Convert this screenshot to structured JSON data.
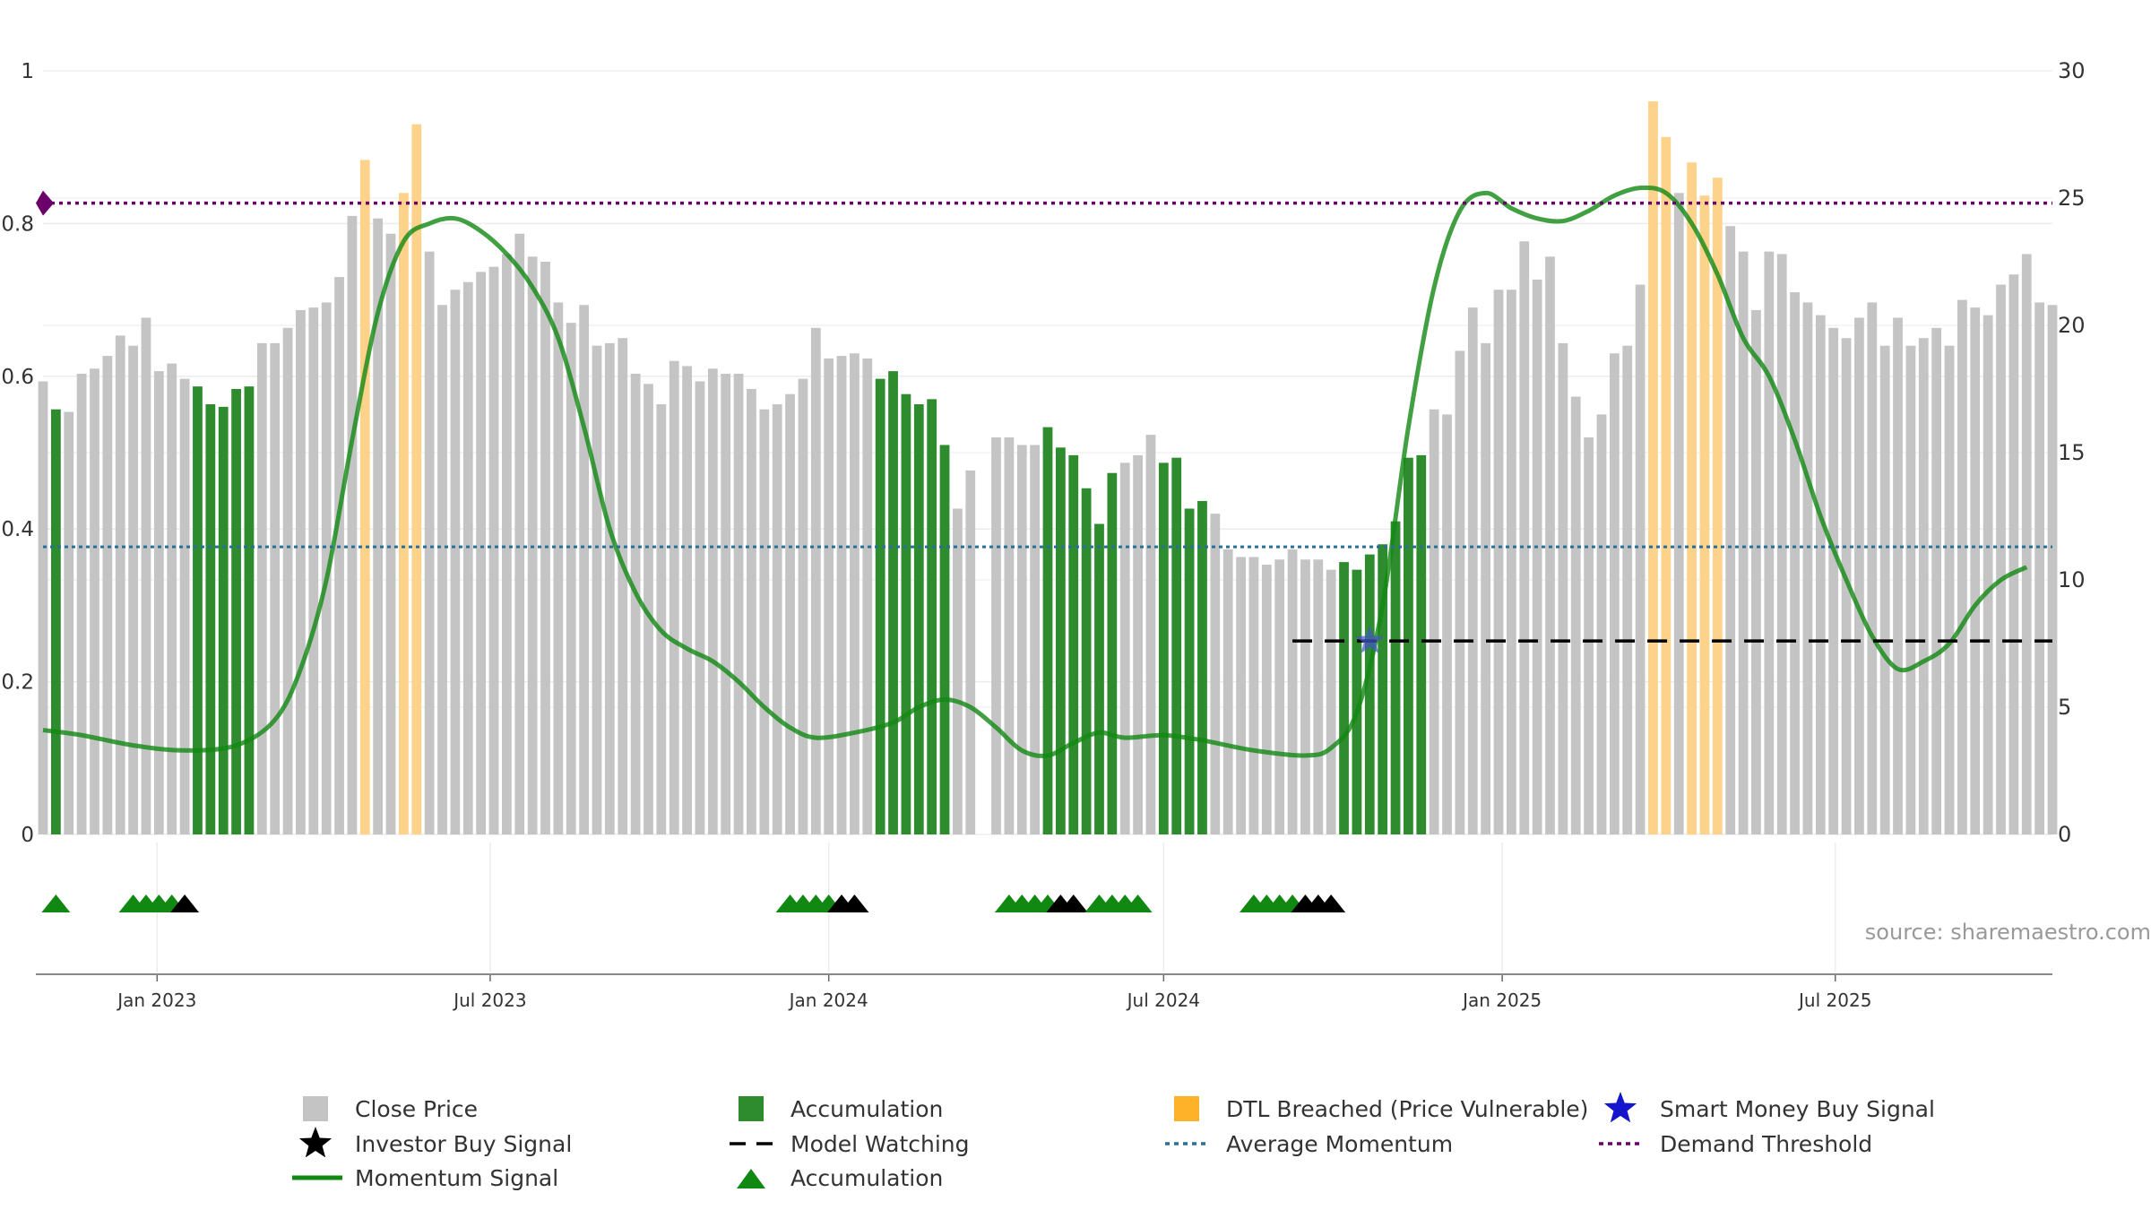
{
  "chart_data": {
    "type": "bar",
    "x_ticks": [
      "Jan 2023",
      "Jul 2023",
      "Jan 2024",
      "Jul 2024",
      "Jan 2025",
      "Jul 2025"
    ],
    "x_tick_dates": [
      "2023-01-01",
      "2023-07-01",
      "2024-01-01",
      "2024-07-01",
      "2025-01-01",
      "2025-07-01"
    ],
    "x_range": [
      "2022-10-31",
      "2025-10-27"
    ],
    "y_left": {
      "ticks": [
        "0",
        "0.2",
        "0.4",
        "0.6",
        "0.8",
        "1"
      ],
      "range": [
        0,
        1
      ]
    },
    "y_right": {
      "ticks": [
        "0",
        "5",
        "10",
        "15",
        "20",
        "25",
        "30"
      ],
      "range": [
        0,
        30
      ]
    },
    "grid": true,
    "legend_position": "bottom",
    "source_text": "source: sharemaestro.com",
    "colors": {
      "close": "#c4c4c4",
      "accumulation": "#2e8b2e",
      "dtl": "#fdd28a",
      "momentum": "#118811",
      "average": "#2a6f97",
      "threshold": "#6b006b",
      "smart_money": "#4455cc",
      "investor_signal": "#000000",
      "accum_marker": "#118811"
    },
    "start_date": "2022-10-31",
    "weekly_close": [
      {
        "v": 17.8,
        "s": "close"
      },
      {
        "v": 16.7,
        "s": "acc"
      },
      {
        "v": 16.6,
        "s": "close"
      },
      {
        "v": 18.1,
        "s": "close"
      },
      {
        "v": 18.3,
        "s": "close"
      },
      {
        "v": 18.8,
        "s": "close"
      },
      {
        "v": 19.6,
        "s": "close"
      },
      {
        "v": 19.2,
        "s": "close"
      },
      {
        "v": 20.3,
        "s": "close"
      },
      {
        "v": 18.2,
        "s": "close"
      },
      {
        "v": 18.5,
        "s": "close"
      },
      {
        "v": 17.9,
        "s": "close"
      },
      {
        "v": 17.6,
        "s": "acc"
      },
      {
        "v": 16.9,
        "s": "acc"
      },
      {
        "v": 16.8,
        "s": "acc"
      },
      {
        "v": 17.5,
        "s": "acc"
      },
      {
        "v": 17.6,
        "s": "acc"
      },
      {
        "v": 19.3,
        "s": "close"
      },
      {
        "v": 19.3,
        "s": "close"
      },
      {
        "v": 19.9,
        "s": "close"
      },
      {
        "v": 20.6,
        "s": "close"
      },
      {
        "v": 20.7,
        "s": "close"
      },
      {
        "v": 20.9,
        "s": "close"
      },
      {
        "v": 21.9,
        "s": "close"
      },
      {
        "v": 24.3,
        "s": "close"
      },
      {
        "v": 26.5,
        "s": "dtl"
      },
      {
        "v": 24.2,
        "s": "close"
      },
      {
        "v": 23.6,
        "s": "close"
      },
      {
        "v": 25.2,
        "s": "dtl"
      },
      {
        "v": 27.9,
        "s": "dtl"
      },
      {
        "v": 22.9,
        "s": "close"
      },
      {
        "v": 20.8,
        "s": "close"
      },
      {
        "v": 21.4,
        "s": "close"
      },
      {
        "v": 21.7,
        "s": "close"
      },
      {
        "v": 22.1,
        "s": "close"
      },
      {
        "v": 22.3,
        "s": "close"
      },
      {
        "v": 22.8,
        "s": "close"
      },
      {
        "v": 23.6,
        "s": "close"
      },
      {
        "v": 22.7,
        "s": "close"
      },
      {
        "v": 22.5,
        "s": "close"
      },
      {
        "v": 20.9,
        "s": "close"
      },
      {
        "v": 20.1,
        "s": "close"
      },
      {
        "v": 20.8,
        "s": "close"
      },
      {
        "v": 19.2,
        "s": "close"
      },
      {
        "v": 19.3,
        "s": "close"
      },
      {
        "v": 19.5,
        "s": "close"
      },
      {
        "v": 18.1,
        "s": "close"
      },
      {
        "v": 17.7,
        "s": "close"
      },
      {
        "v": 16.9,
        "s": "close"
      },
      {
        "v": 18.6,
        "s": "close"
      },
      {
        "v": 18.4,
        "s": "close"
      },
      {
        "v": 17.8,
        "s": "close"
      },
      {
        "v": 18.3,
        "s": "close"
      },
      {
        "v": 18.1,
        "s": "close"
      },
      {
        "v": 18.1,
        "s": "close"
      },
      {
        "v": 17.5,
        "s": "close"
      },
      {
        "v": 16.7,
        "s": "close"
      },
      {
        "v": 16.9,
        "s": "close"
      },
      {
        "v": 17.3,
        "s": "close"
      },
      {
        "v": 17.9,
        "s": "close"
      },
      {
        "v": 19.9,
        "s": "close"
      },
      {
        "v": 18.7,
        "s": "close"
      },
      {
        "v": 18.8,
        "s": "close"
      },
      {
        "v": 18.9,
        "s": "close"
      },
      {
        "v": 18.7,
        "s": "close"
      },
      {
        "v": 17.9,
        "s": "acc"
      },
      {
        "v": 18.2,
        "s": "acc"
      },
      {
        "v": 17.3,
        "s": "acc"
      },
      {
        "v": 16.9,
        "s": "acc"
      },
      {
        "v": 17.1,
        "s": "acc"
      },
      {
        "v": 15.3,
        "s": "acc"
      },
      {
        "v": 12.8,
        "s": "close"
      },
      {
        "v": 14.3,
        "s": "close"
      },
      {
        "v": 0,
        "s": "close"
      },
      {
        "v": 15.6,
        "s": "close"
      },
      {
        "v": 15.6,
        "s": "close"
      },
      {
        "v": 15.3,
        "s": "close"
      },
      {
        "v": 15.3,
        "s": "close"
      },
      {
        "v": 16.0,
        "s": "acc"
      },
      {
        "v": 15.2,
        "s": "acc"
      },
      {
        "v": 14.9,
        "s": "acc"
      },
      {
        "v": 13.6,
        "s": "acc"
      },
      {
        "v": 12.2,
        "s": "acc"
      },
      {
        "v": 14.2,
        "s": "acc"
      },
      {
        "v": 14.6,
        "s": "close"
      },
      {
        "v": 14.9,
        "s": "close"
      },
      {
        "v": 15.7,
        "s": "close"
      },
      {
        "v": 14.6,
        "s": "acc"
      },
      {
        "v": 14.8,
        "s": "acc"
      },
      {
        "v": 12.8,
        "s": "acc"
      },
      {
        "v": 13.1,
        "s": "acc"
      },
      {
        "v": 12.6,
        "s": "close"
      },
      {
        "v": 11.2,
        "s": "close"
      },
      {
        "v": 10.9,
        "s": "close"
      },
      {
        "v": 10.9,
        "s": "close"
      },
      {
        "v": 10.6,
        "s": "close"
      },
      {
        "v": 10.8,
        "s": "close"
      },
      {
        "v": 11.2,
        "s": "close"
      },
      {
        "v": 10.8,
        "s": "close"
      },
      {
        "v": 10.8,
        "s": "close"
      },
      {
        "v": 10.4,
        "s": "close"
      },
      {
        "v": 10.7,
        "s": "acc"
      },
      {
        "v": 10.4,
        "s": "acc"
      },
      {
        "v": 11.0,
        "s": "acc"
      },
      {
        "v": 11.4,
        "s": "acc"
      },
      {
        "v": 12.3,
        "s": "acc"
      },
      {
        "v": 14.8,
        "s": "acc"
      },
      {
        "v": 14.9,
        "s": "acc"
      },
      {
        "v": 16.7,
        "s": "close"
      },
      {
        "v": 16.5,
        "s": "close"
      },
      {
        "v": 19.0,
        "s": "close"
      },
      {
        "v": 20.7,
        "s": "close"
      },
      {
        "v": 19.3,
        "s": "close"
      },
      {
        "v": 21.4,
        "s": "close"
      },
      {
        "v": 21.4,
        "s": "close"
      },
      {
        "v": 23.3,
        "s": "close"
      },
      {
        "v": 21.8,
        "s": "close"
      },
      {
        "v": 22.7,
        "s": "close"
      },
      {
        "v": 19.3,
        "s": "close"
      },
      {
        "v": 17.2,
        "s": "close"
      },
      {
        "v": 15.6,
        "s": "close"
      },
      {
        "v": 16.5,
        "s": "close"
      },
      {
        "v": 18.9,
        "s": "close"
      },
      {
        "v": 19.2,
        "s": "close"
      },
      {
        "v": 21.6,
        "s": "close"
      },
      {
        "v": 28.8,
        "s": "dtl"
      },
      {
        "v": 27.4,
        "s": "dtl"
      },
      {
        "v": 25.2,
        "s": "close"
      },
      {
        "v": 26.4,
        "s": "dtl"
      },
      {
        "v": 25.1,
        "s": "dtl"
      },
      {
        "v": 25.8,
        "s": "dtl"
      },
      {
        "v": 23.9,
        "s": "close"
      },
      {
        "v": 22.9,
        "s": "close"
      },
      {
        "v": 20.6,
        "s": "close"
      },
      {
        "v": 22.9,
        "s": "close"
      },
      {
        "v": 22.8,
        "s": "close"
      },
      {
        "v": 21.3,
        "s": "close"
      },
      {
        "v": 20.9,
        "s": "close"
      },
      {
        "v": 20.4,
        "s": "close"
      },
      {
        "v": 19.9,
        "s": "close"
      },
      {
        "v": 19.5,
        "s": "close"
      },
      {
        "v": 20.3,
        "s": "close"
      },
      {
        "v": 20.9,
        "s": "close"
      },
      {
        "v": 19.2,
        "s": "close"
      },
      {
        "v": 20.3,
        "s": "close"
      },
      {
        "v": 19.2,
        "s": "close"
      },
      {
        "v": 19.5,
        "s": "close"
      },
      {
        "v": 19.9,
        "s": "close"
      },
      {
        "v": 19.2,
        "s": "close"
      },
      {
        "v": 21.0,
        "s": "close"
      },
      {
        "v": 20.7,
        "s": "close"
      },
      {
        "v": 20.4,
        "s": "close"
      },
      {
        "v": 21.6,
        "s": "close"
      },
      {
        "v": 22.0,
        "s": "close"
      },
      {
        "v": 22.8,
        "s": "close"
      },
      {
        "v": 20.9,
        "s": "close"
      },
      {
        "v": 20.8,
        "s": "close"
      }
    ],
    "momentum_signal": [
      [
        "2022-10-31",
        4.1
      ],
      [
        "2022-11-21",
        3.9
      ],
      [
        "2022-12-19",
        3.5
      ],
      [
        "2023-01-16",
        3.3
      ],
      [
        "2023-02-13",
        3.5
      ],
      [
        "2023-03-06",
        4.5
      ],
      [
        "2023-03-20",
        6.5
      ],
      [
        "2023-04-03",
        10.0
      ],
      [
        "2023-04-17",
        15.5
      ],
      [
        "2023-05-01",
        20.5
      ],
      [
        "2023-05-15",
        23.3
      ],
      [
        "2023-05-29",
        24.0
      ],
      [
        "2023-06-12",
        24.2
      ],
      [
        "2023-06-26",
        23.7
      ],
      [
        "2023-07-10",
        22.8
      ],
      [
        "2023-07-24",
        21.5
      ],
      [
        "2023-08-07",
        19.5
      ],
      [
        "2023-08-21",
        16.0
      ],
      [
        "2023-09-04",
        12.0
      ],
      [
        "2023-09-18",
        9.5
      ],
      [
        "2023-10-02",
        8.0
      ],
      [
        "2023-10-16",
        7.3
      ],
      [
        "2023-10-30",
        6.8
      ],
      [
        "2023-11-13",
        6.0
      ],
      [
        "2023-11-27",
        5.0
      ],
      [
        "2023-12-11",
        4.2
      ],
      [
        "2023-12-25",
        3.8
      ],
      [
        "2024-01-15",
        4.0
      ],
      [
        "2024-02-05",
        4.4
      ],
      [
        "2024-02-19",
        5.0
      ],
      [
        "2024-03-04",
        5.3
      ],
      [
        "2024-03-18",
        5.0
      ],
      [
        "2024-04-01",
        4.2
      ],
      [
        "2024-04-15",
        3.3
      ],
      [
        "2024-04-29",
        3.1
      ],
      [
        "2024-05-13",
        3.6
      ],
      [
        "2024-05-27",
        4.0
      ],
      [
        "2024-06-10",
        3.8
      ],
      [
        "2024-07-01",
        3.9
      ],
      [
        "2024-07-22",
        3.7
      ],
      [
        "2024-08-19",
        3.3
      ],
      [
        "2024-09-16",
        3.1
      ],
      [
        "2024-09-30",
        3.4
      ],
      [
        "2024-10-14",
        4.8
      ],
      [
        "2024-10-28",
        9.0
      ],
      [
        "2024-11-11",
        16.0
      ],
      [
        "2024-11-25",
        21.5
      ],
      [
        "2024-12-09",
        24.5
      ],
      [
        "2024-12-23",
        25.2
      ],
      [
        "2025-01-06",
        24.6
      ],
      [
        "2025-01-20",
        24.2
      ],
      [
        "2025-02-03",
        24.1
      ],
      [
        "2025-02-17",
        24.5
      ],
      [
        "2025-03-03",
        25.1
      ],
      [
        "2025-03-17",
        25.4
      ],
      [
        "2025-03-31",
        25.2
      ],
      [
        "2025-04-14",
        24.0
      ],
      [
        "2025-04-28",
        22.0
      ],
      [
        "2025-05-12",
        19.5
      ],
      [
        "2025-05-26",
        18.0
      ],
      [
        "2025-06-09",
        15.5
      ],
      [
        "2025-06-23",
        12.5
      ],
      [
        "2025-07-07",
        10.0
      ],
      [
        "2025-07-21",
        7.8
      ],
      [
        "2025-08-04",
        6.5
      ],
      [
        "2025-08-18",
        6.8
      ],
      [
        "2025-09-01",
        7.5
      ],
      [
        "2025-09-15",
        9.0
      ],
      [
        "2025-09-29",
        10.0
      ],
      [
        "2025-10-13",
        10.5
      ]
    ],
    "average_momentum": 11.3,
    "demand_threshold": 24.8,
    "threshold_marker_date": "2022-10-31",
    "model_watching": {
      "start": "2024-09-09",
      "end": "2025-10-27",
      "value": 7.6
    },
    "smart_money_buy": {
      "date": "2024-10-21",
      "value": 7.6
    },
    "markers": [
      {
        "date": "2022-11-07",
        "kind": "acc"
      },
      {
        "date": "2022-12-19",
        "kind": "acc"
      },
      {
        "date": "2022-12-26",
        "kind": "acc"
      },
      {
        "date": "2023-01-02",
        "kind": "acc"
      },
      {
        "date": "2023-01-09",
        "kind": "acc"
      },
      {
        "date": "2023-01-16",
        "kind": "inv"
      },
      {
        "date": "2023-12-11",
        "kind": "acc"
      },
      {
        "date": "2023-12-18",
        "kind": "acc"
      },
      {
        "date": "2023-12-25",
        "kind": "acc"
      },
      {
        "date": "2024-01-01",
        "kind": "acc"
      },
      {
        "date": "2024-01-08",
        "kind": "inv"
      },
      {
        "date": "2024-01-15",
        "kind": "inv"
      },
      {
        "date": "2024-04-08",
        "kind": "acc"
      },
      {
        "date": "2024-04-15",
        "kind": "acc"
      },
      {
        "date": "2024-04-22",
        "kind": "acc"
      },
      {
        "date": "2024-04-29",
        "kind": "acc"
      },
      {
        "date": "2024-05-06",
        "kind": "inv"
      },
      {
        "date": "2024-05-13",
        "kind": "inv"
      },
      {
        "date": "2024-05-27",
        "kind": "acc"
      },
      {
        "date": "2024-06-03",
        "kind": "acc"
      },
      {
        "date": "2024-06-10",
        "kind": "acc"
      },
      {
        "date": "2024-06-17",
        "kind": "acc"
      },
      {
        "date": "2024-08-19",
        "kind": "acc"
      },
      {
        "date": "2024-08-26",
        "kind": "acc"
      },
      {
        "date": "2024-09-02",
        "kind": "acc"
      },
      {
        "date": "2024-09-09",
        "kind": "acc"
      },
      {
        "date": "2024-09-16",
        "kind": "inv"
      },
      {
        "date": "2024-09-23",
        "kind": "inv"
      },
      {
        "date": "2024-09-30",
        "kind": "inv"
      }
    ],
    "legend": [
      {
        "label": "Close Price",
        "symbol": "square",
        "color": "#c4c4c4"
      },
      {
        "label": "Accumulation",
        "symbol": "square",
        "color": "#2e8b2e"
      },
      {
        "label": "DTL Breached (Price Vulnerable)",
        "symbol": "square",
        "color": "#fdb22a"
      },
      {
        "label": "Smart Money Buy Signal",
        "symbol": "star",
        "color": "#1515cc"
      },
      {
        "label": "Investor Buy Signal",
        "symbol": "star",
        "color": "#000000"
      },
      {
        "label": "Model Watching",
        "symbol": "dash",
        "color": "#000000"
      },
      {
        "label": "Average Momentum",
        "symbol": "dot",
        "color": "#2a6f97"
      },
      {
        "label": "Demand Threshold",
        "symbol": "dot",
        "color": "#6b006b"
      },
      {
        "label": "Momentum Signal",
        "symbol": "line",
        "color": "#118811"
      },
      {
        "label": "Accumulation",
        "symbol": "triangle",
        "color": "#118811"
      }
    ]
  }
}
